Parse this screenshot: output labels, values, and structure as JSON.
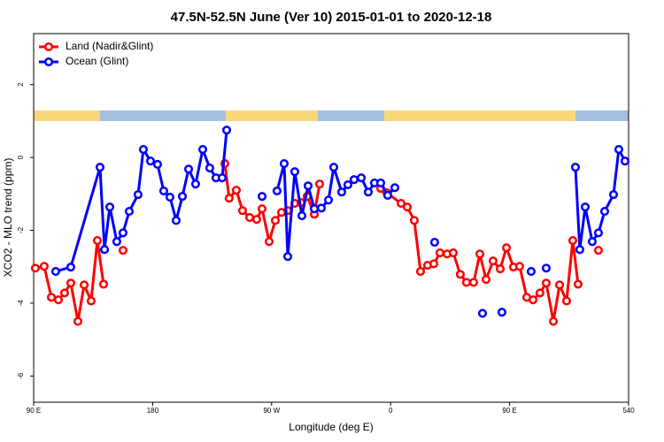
{
  "chart_data": {
    "type": "line",
    "title": "47.5N-52.5N June (Ver 10)   2015-01-01 to 2020-12-18",
    "x_label": "Longitude (deg E)",
    "y_label": "XCO2 - MLO trend (ppm)",
    "xlim": [
      90,
      540
    ],
    "ylim": [
      -6.72,
      3.4
    ],
    "xticks": [
      {
        "value": 90,
        "label": "90 E"
      },
      180,
      {
        "value": 270,
        "label": "90 W"
      },
      {
        "value": 360,
        "label": "0"
      },
      {
        "value": 450,
        "label": "90 E"
      },
      540
    ],
    "yticks": [
      -6,
      -4,
      -2,
      0,
      2
    ],
    "grid": false,
    "legend": "top-left",
    "series": [
      {
        "name": "Land (Nadir&Glint)",
        "color": "#ff0000",
        "x": [
          91.3,
          98.0,
          103.4,
          108.7,
          113.4,
          118.1,
          123.5,
          128.2,
          133.5,
          138.2,
          142.9,
          null,
          157.6,
          null,
          234.6,
          237.9,
          243.3,
          248.0,
          253.4,
          258.7,
          262.8,
          268.1,
          272.8,
          277.5,
          282.2,
          287.5,
          292.2,
          296.9,
          302.3,
          306.3,
          null,
          352.5,
          357.2,
          367.9,
          372.6,
          377.9,
          382.6,
          388.0,
          392.7,
          397.3,
          402.7,
          407.4,
          412.7,
          417.4,
          422.8,
          427.5,
          432.2,
          437.5,
          442.9,
          447.6,
          452.9,
          457.6,
          463.0,
          467.7,
          473.0,
          477.7,
          483.1,
          487.8,
          493.1,
          497.8,
          501.8,
          null,
          517.2
        ],
        "values": [
          -3.04,
          -2.99,
          -3.84,
          -3.91,
          -3.72,
          -3.45,
          -4.5,
          -3.5,
          -3.94,
          -2.28,
          -3.48,
          null,
          -2.55,
          null,
          -0.17,
          -1.12,
          -0.9,
          -1.46,
          -1.65,
          -1.7,
          -1.41,
          -2.31,
          -1.73,
          -1.51,
          -1.46,
          -1.26,
          -1.24,
          -1.07,
          -1.56,
          -0.73,
          null,
          -0.85,
          -0.97,
          -1.26,
          -1.36,
          -1.73,
          -3.13,
          -2.96,
          -2.92,
          -2.62,
          -2.65,
          -2.62,
          -3.21,
          -3.43,
          -3.43,
          -2.65,
          -3.35,
          -2.84,
          -3.06,
          -2.48,
          -3.01,
          -2.99,
          -3.84,
          -3.91,
          -3.72,
          -3.45,
          -4.5,
          -3.5,
          -3.94,
          -2.28,
          -3.48,
          null,
          -2.55
        ]
      },
      {
        "name": "Ocean (Glint)",
        "color": "#0000ff",
        "x": [
          106.7,
          118.1,
          140.2,
          143.6,
          147.6,
          152.9,
          157.6,
          162.3,
          169.0,
          173.0,
          178.4,
          183.7,
          188.4,
          193.1,
          197.8,
          202.5,
          207.2,
          212.5,
          217.9,
          223.2,
          227.9,
          232.6,
          236.0,
          null,
          262.8,
          null,
          274.1,
          279.5,
          282.2,
          287.5,
          292.9,
          297.6,
          302.3,
          307.6,
          313.0,
          317.0,
          323.0,
          327.7,
          332.4,
          337.8,
          343.1,
          347.8,
          352.5,
          357.8,
          363.2,
          null,
          393.3,
          null,
          429.5,
          null,
          444.2,
          null,
          466.3,
          null,
          477.7,
          null,
          499.8,
          503.1,
          507.2,
          512.5,
          517.2,
          521.9,
          528.6,
          532.6,
          537.3
        ],
        "values": [
          -3.13,
          -3.01,
          -0.27,
          -2.53,
          -1.36,
          -2.31,
          -2.07,
          -1.48,
          -1.02,
          0.22,
          -0.1,
          -0.19,
          -0.92,
          -1.09,
          -1.73,
          -1.07,
          -0.32,
          -0.73,
          0.22,
          -0.29,
          -0.56,
          -0.56,
          0.75,
          null,
          -1.07,
          null,
          -0.92,
          -0.17,
          -2.72,
          -0.39,
          -1.6,
          -0.78,
          -1.41,
          -1.39,
          -1.17,
          -0.27,
          -0.95,
          -0.75,
          -0.61,
          -0.56,
          -0.95,
          -0.7,
          -0.7,
          -1.04,
          -0.83,
          null,
          -2.33,
          null,
          -4.28,
          null,
          -4.25,
          null,
          -3.13,
          null,
          -3.04,
          null,
          -0.27,
          -2.53,
          -1.36,
          -2.31,
          -2.07,
          -1.48,
          -1.02,
          0.22,
          -0.1
        ]
      }
    ]
  }
}
